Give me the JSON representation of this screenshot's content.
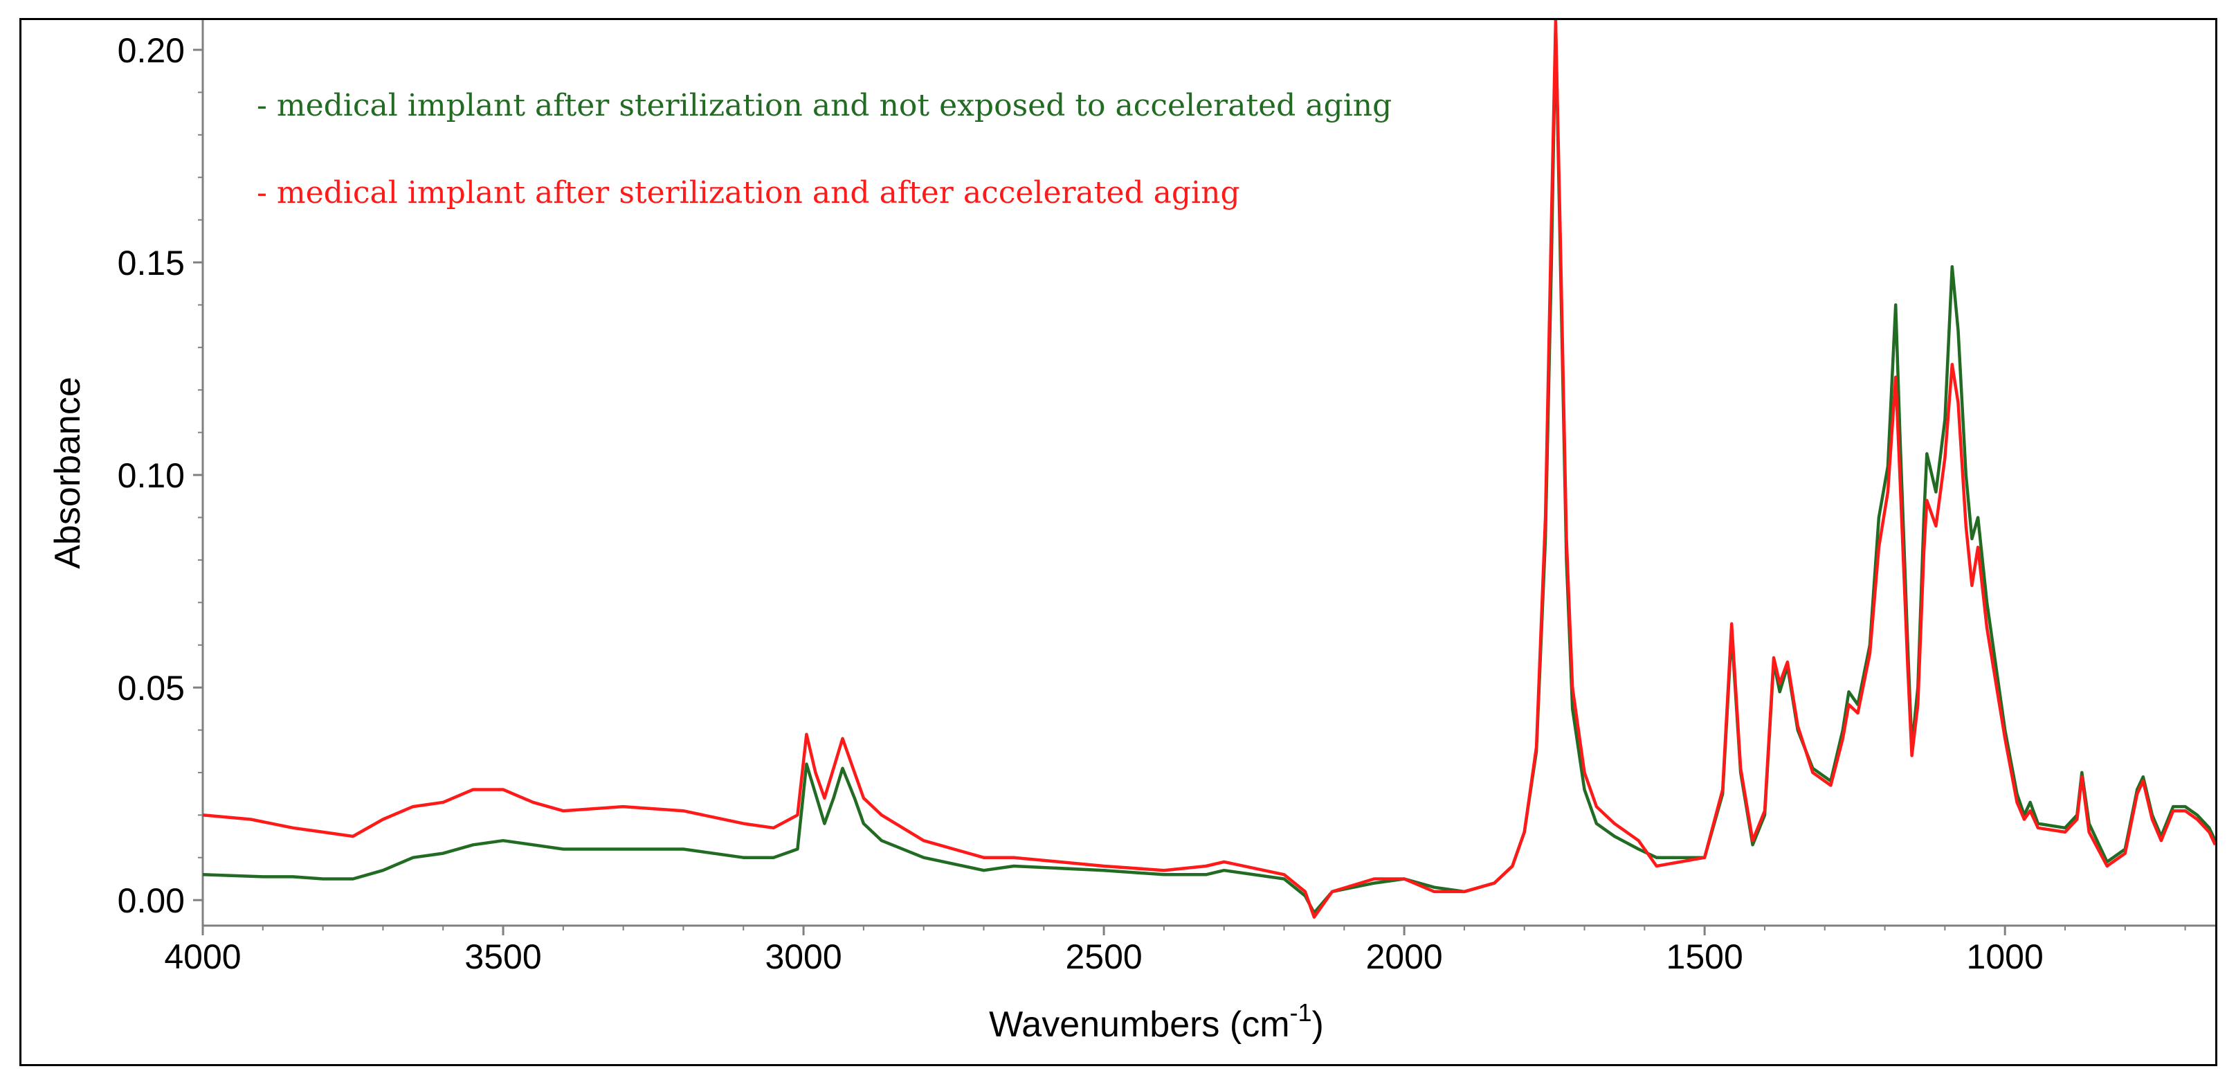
{
  "chart_data": {
    "type": "line",
    "title": "",
    "xlabel": "Wavenumbers (cm",
    "xlabel_sup": "-1",
    "xlabel_close": ")",
    "ylabel": "Absorbance",
    "xlim": [
      4000,
      650
    ],
    "ylim": [
      -0.006,
      0.207
    ],
    "x_reversed": true,
    "grid": false,
    "legend_position": "top-left",
    "x_ticks": [
      4000,
      3500,
      3000,
      2500,
      2000,
      1500,
      1000
    ],
    "x_tick_labels": [
      "4000",
      "3500",
      "3000",
      "2500",
      "2000",
      "1500",
      "1000"
    ],
    "y_ticks": [
      0.0,
      0.05,
      0.1,
      0.15,
      0.2
    ],
    "y_tick_labels": [
      "0.00",
      "0.05",
      "0.10",
      "0.15",
      "0.20"
    ],
    "series": [
      {
        "name": "medical implant after sterilization and not exposed to accelerated aging",
        "legend_label": "- medical implant after sterilization and not exposed to accelerated aging",
        "color": "#226b22",
        "points": [
          [
            4000,
            0.006
          ],
          [
            3900,
            0.0055
          ],
          [
            3850,
            0.0055
          ],
          [
            3800,
            0.005
          ],
          [
            3750,
            0.005
          ],
          [
            3700,
            0.007
          ],
          [
            3650,
            0.01
          ],
          [
            3600,
            0.011
          ],
          [
            3550,
            0.013
          ],
          [
            3500,
            0.014
          ],
          [
            3450,
            0.013
          ],
          [
            3400,
            0.012
          ],
          [
            3300,
            0.012
          ],
          [
            3200,
            0.012
          ],
          [
            3100,
            0.01
          ],
          [
            3050,
            0.01
          ],
          [
            3010,
            0.012
          ],
          [
            2995,
            0.032
          ],
          [
            2980,
            0.025
          ],
          [
            2965,
            0.018
          ],
          [
            2950,
            0.024
          ],
          [
            2935,
            0.031
          ],
          [
            2915,
            0.024
          ],
          [
            2900,
            0.018
          ],
          [
            2870,
            0.014
          ],
          [
            2800,
            0.01
          ],
          [
            2700,
            0.007
          ],
          [
            2650,
            0.008
          ],
          [
            2500,
            0.007
          ],
          [
            2400,
            0.006
          ],
          [
            2330,
            0.006
          ],
          [
            2300,
            0.007
          ],
          [
            2200,
            0.005
          ],
          [
            2165,
            0.001
          ],
          [
            2150,
            -0.003
          ],
          [
            2120,
            0.002
          ],
          [
            2050,
            0.004
          ],
          [
            2000,
            0.005
          ],
          [
            1950,
            0.003
          ],
          [
            1900,
            0.002
          ],
          [
            1850,
            0.004
          ],
          [
            1820,
            0.008
          ],
          [
            1800,
            0.016
          ],
          [
            1780,
            0.035
          ],
          [
            1765,
            0.085
          ],
          [
            1755,
            0.15
          ],
          [
            1748,
            0.206
          ],
          [
            1740,
            0.15
          ],
          [
            1730,
            0.08
          ],
          [
            1720,
            0.045
          ],
          [
            1700,
            0.026
          ],
          [
            1680,
            0.018
          ],
          [
            1650,
            0.015
          ],
          [
            1610,
            0.012
          ],
          [
            1580,
            0.01
          ],
          [
            1500,
            0.01
          ],
          [
            1470,
            0.025
          ],
          [
            1455,
            0.063
          ],
          [
            1440,
            0.03
          ],
          [
            1420,
            0.013
          ],
          [
            1400,
            0.02
          ],
          [
            1385,
            0.056
          ],
          [
            1375,
            0.049
          ],
          [
            1362,
            0.055
          ],
          [
            1345,
            0.04
          ],
          [
            1320,
            0.031
          ],
          [
            1290,
            0.028
          ],
          [
            1270,
            0.04
          ],
          [
            1260,
            0.049
          ],
          [
            1245,
            0.046
          ],
          [
            1225,
            0.06
          ],
          [
            1210,
            0.09
          ],
          [
            1195,
            0.102
          ],
          [
            1182,
            0.14
          ],
          [
            1175,
            0.11
          ],
          [
            1162,
            0.06
          ],
          [
            1155,
            0.036
          ],
          [
            1145,
            0.05
          ],
          [
            1135,
            0.09
          ],
          [
            1130,
            0.105
          ],
          [
            1115,
            0.096
          ],
          [
            1100,
            0.113
          ],
          [
            1088,
            0.149
          ],
          [
            1078,
            0.134
          ],
          [
            1065,
            0.1
          ],
          [
            1055,
            0.085
          ],
          [
            1045,
            0.09
          ],
          [
            1030,
            0.07
          ],
          [
            1000,
            0.04
          ],
          [
            980,
            0.025
          ],
          [
            968,
            0.02
          ],
          [
            958,
            0.023
          ],
          [
            945,
            0.018
          ],
          [
            900,
            0.017
          ],
          [
            880,
            0.02
          ],
          [
            872,
            0.03
          ],
          [
            860,
            0.018
          ],
          [
            830,
            0.009
          ],
          [
            800,
            0.012
          ],
          [
            780,
            0.026
          ],
          [
            770,
            0.029
          ],
          [
            755,
            0.02
          ],
          [
            740,
            0.015
          ],
          [
            720,
            0.022
          ],
          [
            700,
            0.022
          ],
          [
            680,
            0.02
          ],
          [
            660,
            0.017
          ],
          [
            650,
            0.014
          ]
        ]
      },
      {
        "name": "medical implant after sterilization and after accelerated aging",
        "legend_label": "- medical implant after sterilization and after accelerated aging",
        "color": "#ff1a1a",
        "points": [
          [
            4000,
            0.02
          ],
          [
            3920,
            0.019
          ],
          [
            3850,
            0.017
          ],
          [
            3800,
            0.016
          ],
          [
            3750,
            0.015
          ],
          [
            3700,
            0.019
          ],
          [
            3650,
            0.022
          ],
          [
            3600,
            0.023
          ],
          [
            3550,
            0.026
          ],
          [
            3500,
            0.026
          ],
          [
            3450,
            0.023
          ],
          [
            3400,
            0.021
          ],
          [
            3300,
            0.022
          ],
          [
            3200,
            0.021
          ],
          [
            3100,
            0.018
          ],
          [
            3050,
            0.017
          ],
          [
            3010,
            0.02
          ],
          [
            2995,
            0.039
          ],
          [
            2980,
            0.03
          ],
          [
            2965,
            0.024
          ],
          [
            2950,
            0.031
          ],
          [
            2935,
            0.038
          ],
          [
            2915,
            0.03
          ],
          [
            2900,
            0.024
          ],
          [
            2870,
            0.02
          ],
          [
            2800,
            0.014
          ],
          [
            2700,
            0.01
          ],
          [
            2650,
            0.01
          ],
          [
            2500,
            0.008
          ],
          [
            2400,
            0.007
          ],
          [
            2330,
            0.008
          ],
          [
            2300,
            0.009
          ],
          [
            2200,
            0.006
          ],
          [
            2165,
            0.002
          ],
          [
            2150,
            -0.004
          ],
          [
            2120,
            0.002
          ],
          [
            2050,
            0.005
          ],
          [
            2000,
            0.005
          ],
          [
            1950,
            0.002
          ],
          [
            1900,
            0.002
          ],
          [
            1850,
            0.004
          ],
          [
            1820,
            0.008
          ],
          [
            1800,
            0.016
          ],
          [
            1780,
            0.036
          ],
          [
            1765,
            0.09
          ],
          [
            1755,
            0.16
          ],
          [
            1748,
            0.207
          ],
          [
            1740,
            0.155
          ],
          [
            1730,
            0.085
          ],
          [
            1720,
            0.05
          ],
          [
            1700,
            0.03
          ],
          [
            1680,
            0.022
          ],
          [
            1650,
            0.018
          ],
          [
            1610,
            0.014
          ],
          [
            1580,
            0.008
          ],
          [
            1500,
            0.01
          ],
          [
            1470,
            0.026
          ],
          [
            1455,
            0.065
          ],
          [
            1440,
            0.031
          ],
          [
            1420,
            0.014
          ],
          [
            1400,
            0.021
          ],
          [
            1385,
            0.057
          ],
          [
            1375,
            0.051
          ],
          [
            1362,
            0.056
          ],
          [
            1345,
            0.041
          ],
          [
            1320,
            0.03
          ],
          [
            1290,
            0.027
          ],
          [
            1270,
            0.038
          ],
          [
            1260,
            0.046
          ],
          [
            1245,
            0.044
          ],
          [
            1225,
            0.058
          ],
          [
            1210,
            0.083
          ],
          [
            1195,
            0.096
          ],
          [
            1182,
            0.123
          ],
          [
            1175,
            0.1
          ],
          [
            1162,
            0.055
          ],
          [
            1155,
            0.034
          ],
          [
            1145,
            0.046
          ],
          [
            1135,
            0.082
          ],
          [
            1130,
            0.094
          ],
          [
            1115,
            0.088
          ],
          [
            1100,
            0.104
          ],
          [
            1088,
            0.126
          ],
          [
            1078,
            0.117
          ],
          [
            1065,
            0.088
          ],
          [
            1055,
            0.074
          ],
          [
            1045,
            0.083
          ],
          [
            1030,
            0.064
          ],
          [
            1000,
            0.038
          ],
          [
            980,
            0.023
          ],
          [
            968,
            0.019
          ],
          [
            958,
            0.021
          ],
          [
            945,
            0.017
          ],
          [
            900,
            0.016
          ],
          [
            880,
            0.019
          ],
          [
            872,
            0.029
          ],
          [
            860,
            0.016
          ],
          [
            830,
            0.008
          ],
          [
            800,
            0.011
          ],
          [
            780,
            0.025
          ],
          [
            770,
            0.028
          ],
          [
            755,
            0.019
          ],
          [
            740,
            0.014
          ],
          [
            720,
            0.021
          ],
          [
            700,
            0.021
          ],
          [
            680,
            0.019
          ],
          [
            660,
            0.016
          ],
          [
            650,
            0.013
          ]
        ]
      }
    ]
  }
}
